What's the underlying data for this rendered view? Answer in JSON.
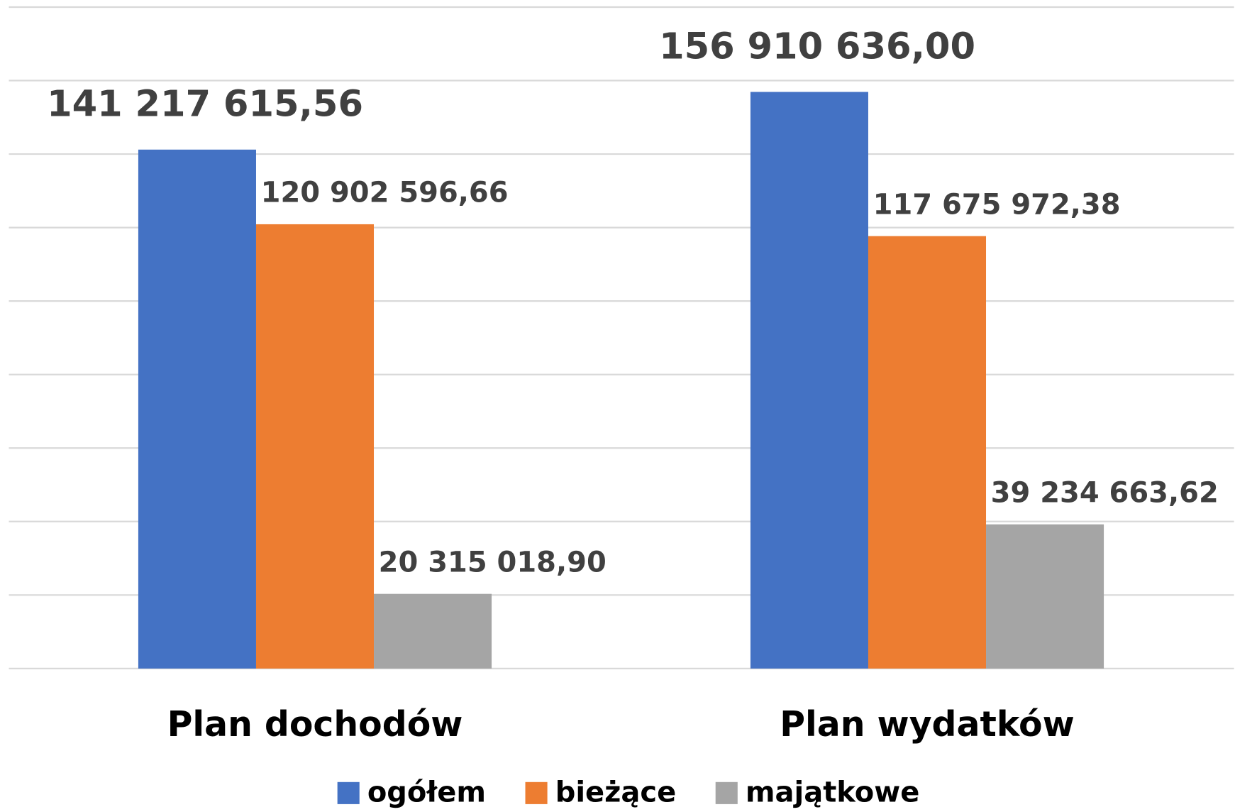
{
  "chart_data": {
    "type": "bar",
    "categories": [
      "Plan dochodów",
      "Plan wydatków"
    ],
    "series": [
      {
        "name": "ogółem",
        "color": "#4472c4",
        "values": [
          141217615.56,
          156910636.0
        ],
        "value_labels": [
          "141 217 615,56",
          "156 910 636,00"
        ]
      },
      {
        "name": "bieżące",
        "color": "#ed7d31",
        "values": [
          120902596.66,
          117675972.38
        ],
        "value_labels": [
          "120 902 596,66",
          "117 675 972,38"
        ]
      },
      {
        "name": "majątkowe",
        "color": "#a5a5a5",
        "values": [
          20315018.9,
          39234663.62
        ],
        "value_labels": [
          "20 315 018,90",
          "39 234 663,62"
        ]
      }
    ],
    "ylim": [
      0,
      180000000
    ],
    "yticks": [
      0,
      20000000,
      40000000,
      60000000,
      80000000,
      100000000,
      120000000,
      140000000,
      160000000,
      180000000
    ],
    "grid": true,
    "legend": "bottom"
  }
}
